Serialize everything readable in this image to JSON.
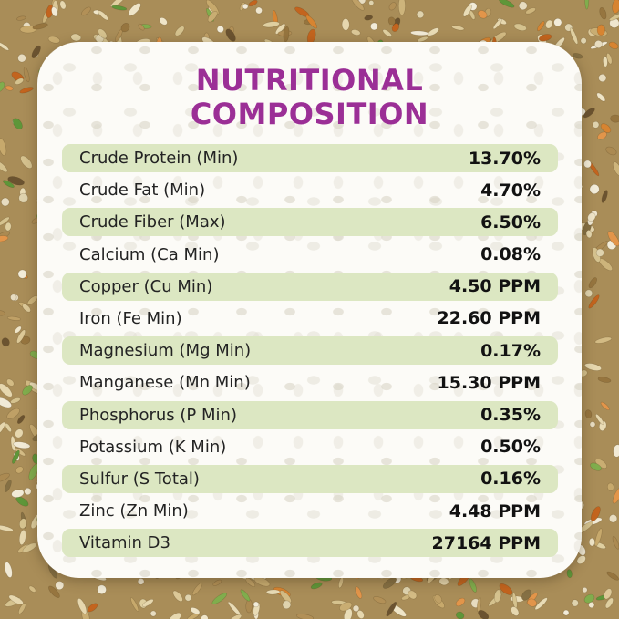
{
  "title": {
    "line1": "NUTRITIONAL",
    "line2": "COMPOSITION"
  },
  "colors": {
    "title_color": "#9b2f96",
    "row_highlight": "#dce7c2",
    "label_text": "#232323",
    "value_text": "#121212",
    "card_bg": "#fcfbf7"
  },
  "table": {
    "rows": [
      {
        "label": "Crude Protein (Min)",
        "value": "13.70%"
      },
      {
        "label": "Crude Fat (Min)",
        "value": "4.70%"
      },
      {
        "label": "Crude Fiber (Max)",
        "value": "6.50%"
      },
      {
        "label": "Calcium (Ca Min)",
        "value": "0.08%"
      },
      {
        "label": "Copper (Cu Min)",
        "value": "4.50 PPM"
      },
      {
        "label": "Iron (Fe Min)",
        "value": "22.60 PPM"
      },
      {
        "label": "Magnesium (Mg Min)",
        "value": "0.17%"
      },
      {
        "label": "Manganese (Mn Min)",
        "value": "15.30 PPM"
      },
      {
        "label": "Phosphorus (P Min)",
        "value": "0.35%"
      },
      {
        "label": "Potassium (K Min)",
        "value": "0.50%"
      },
      {
        "label": "Sulfur (S Total)",
        "value": "0.16%"
      },
      {
        "label": "Zinc (Zn Min)",
        "value": "4.48 PPM"
      },
      {
        "label": "Vitamin D3",
        "value": "27164 PPM"
      }
    ]
  }
}
